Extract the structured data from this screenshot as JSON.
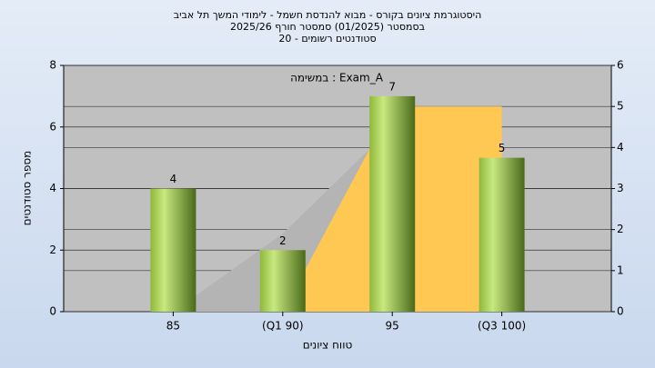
{
  "chart_data": {
    "type": "bar",
    "title": [
      "היסטוגרמת ציונים בקורס - מבוא להנדסת חשמל - לימודי המשך תל אביב",
      "בסמסטר  (01/2025)  סמסטר חורף 2025/26",
      "סטודנטים רשומים - 20"
    ],
    "annotation": "במשימה : Exam_A",
    "x_label": "טווח ציונים",
    "y_label": "מספר סטודנטים",
    "categories": [
      "85",
      "(Q1 90)",
      "95",
      "(Q3 100)"
    ],
    "values": [
      4,
      2,
      7,
      5
    ],
    "color": "#9acd32",
    "areas": [
      {
        "color": "#b4b4b4",
        "axis": "y2",
        "values": [
          0,
          1.9,
          4.5,
          null
        ]
      },
      {
        "color": "#ffc852",
        "axis": "y2",
        "values": [
          null,
          0,
          5,
          5
        ]
      }
    ],
    "ylim": [
      0,
      8
    ],
    "yticks": [
      0,
      2,
      4,
      6,
      8
    ],
    "y2lim": [
      0,
      6
    ],
    "y2ticks": [
      0,
      1,
      2,
      3,
      4,
      5,
      6
    ],
    "grid": true
  }
}
